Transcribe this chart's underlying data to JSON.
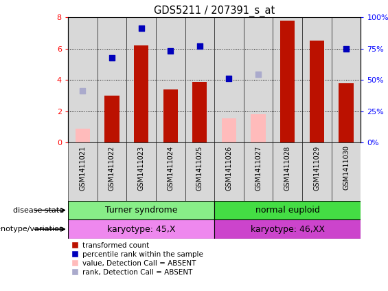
{
  "title": "GDS5211 / 207391_s_at",
  "samples": [
    "GSM1411021",
    "GSM1411022",
    "GSM1411023",
    "GSM1411024",
    "GSM1411025",
    "GSM1411026",
    "GSM1411027",
    "GSM1411028",
    "GSM1411029",
    "GSM1411030"
  ],
  "red_bars": [
    null,
    3.0,
    6.2,
    3.4,
    3.9,
    null,
    null,
    7.8,
    6.5,
    3.8
  ],
  "pink_bars": [
    0.9,
    null,
    null,
    null,
    null,
    1.55,
    1.8,
    null,
    null,
    null
  ],
  "blue_squares_left_scale": [
    null,
    5.4,
    7.3,
    5.85,
    6.15,
    4.1,
    null,
    null,
    null,
    6.0
  ],
  "light_blue_squares_left_scale": [
    3.3,
    null,
    null,
    null,
    null,
    null,
    4.35,
    null,
    null,
    null
  ],
  "disease_state_groups": [
    {
      "label": "Turner syndrome",
      "start": 0,
      "end": 5,
      "color": "#88ee88"
    },
    {
      "label": "normal euploid",
      "start": 5,
      "end": 10,
      "color": "#44dd44"
    }
  ],
  "genotype_groups": [
    {
      "label": "karyotype: 45,X",
      "start": 0,
      "end": 5,
      "color": "#ee88ee"
    },
    {
      "label": "karyotype: 46,XX",
      "start": 5,
      "end": 10,
      "color": "#cc44cc"
    }
  ],
  "ylim_left": [
    0,
    8
  ],
  "ylim_right": [
    0,
    100
  ],
  "yticks_left": [
    0,
    2,
    4,
    6,
    8
  ],
  "yticks_right": [
    0,
    25,
    50,
    75,
    100
  ],
  "ytick_labels_right": [
    "0%",
    "25%",
    "50%",
    "75%",
    "100%"
  ],
  "red_bar_color": "#bb1100",
  "pink_bar_color": "#ffbbbb",
  "blue_square_color": "#0000bb",
  "light_blue_square_color": "#aaaacc",
  "bg_color": "#d8d8d8",
  "bar_width": 0.5,
  "legend_items": [
    {
      "color": "#bb1100",
      "label": "transformed count"
    },
    {
      "color": "#0000bb",
      "label": "percentile rank within the sample"
    },
    {
      "color": "#ffbbbb",
      "label": "value, Detection Call = ABSENT"
    },
    {
      "color": "#aaaacc",
      "label": "rank, Detection Call = ABSENT"
    }
  ]
}
